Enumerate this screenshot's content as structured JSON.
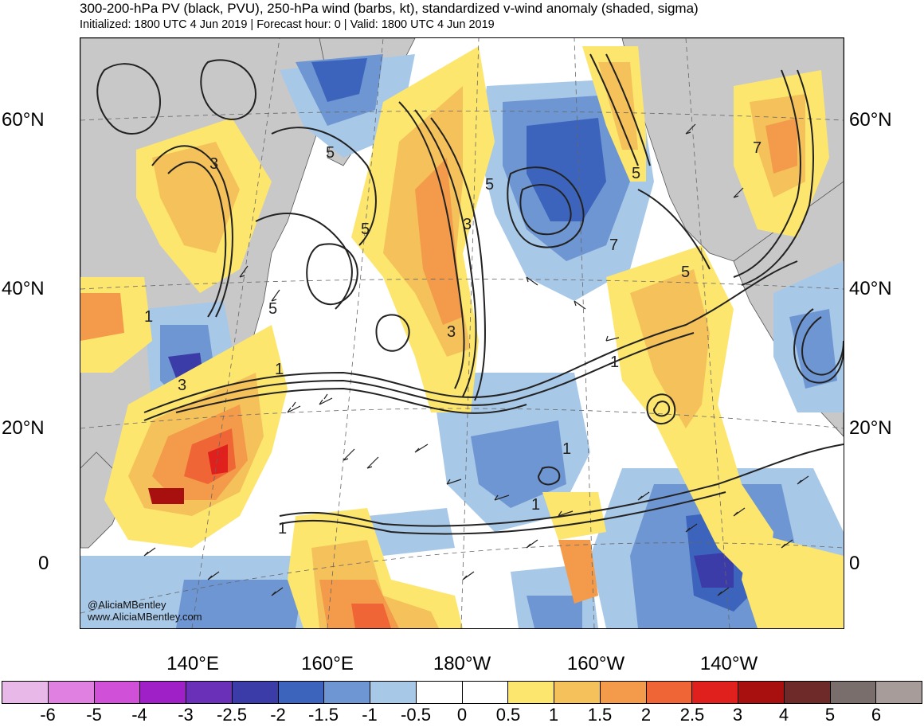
{
  "title": {
    "line1": "300-200-hPa PV (black, PVU), 250-hPa wind (barbs, kt), standardized v-wind anomaly (shaded, sigma)",
    "line2": "Initialized: 1800 UTC 4 Jun 2019 | Forecast hour: 0 | Valid: 1800 UTC 4 Jun 2019"
  },
  "map": {
    "lat_labels_left": [
      "60°N",
      "40°N",
      "20°N",
      "0"
    ],
    "lat_labels_right": [
      "60°N",
      "40°N",
      "20°N",
      "0"
    ],
    "lon_labels": [
      "140°E",
      "160°E",
      "180°W",
      "160°W",
      "140°W"
    ],
    "contour_labels": [
      "3",
      "5",
      "5",
      "3",
      "5",
      "5",
      "7",
      "7",
      "5",
      "1",
      "1",
      "3",
      "1",
      "3",
      "1",
      "1",
      "1",
      "5"
    ],
    "land_color": "#c8c8c8",
    "pv_contour_color": "#222222"
  },
  "credit": {
    "handle": "@AliciaMBentley",
    "site": "www.AliciaMBentley.com"
  },
  "colorbar": {
    "colors": [
      "#e8b8e8",
      "#e080e0",
      "#d050d8",
      "#a020c8",
      "#6a30b8",
      "#3c3ca8",
      "#3c64bc",
      "#6e96d2",
      "#a8c8e8",
      "#ffffff",
      "#ffffff",
      "#fde66e",
      "#f5c15a",
      "#f39b4a",
      "#ef6535",
      "#e0201c",
      "#a8100f",
      "#6e2a28",
      "#7a6e6c",
      "#a89c9a"
    ],
    "ticks": [
      "-6",
      "-5",
      "-4",
      "-3",
      "-2.5",
      "-2",
      "-1.5",
      "-1",
      "-0.5",
      "0",
      "0.5",
      "1",
      "1.5",
      "2",
      "2.5",
      "3",
      "4",
      "5",
      "6"
    ]
  }
}
